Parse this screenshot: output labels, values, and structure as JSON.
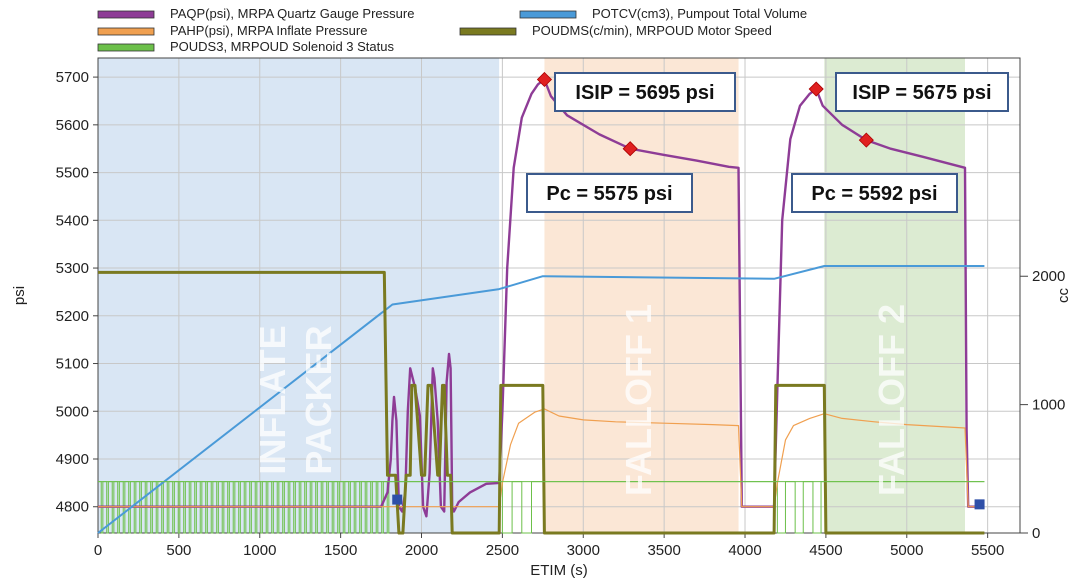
{
  "chart_data": {
    "type": "line",
    "title": "",
    "xlabel": "ETIM (s)",
    "ylabel": "psi",
    "y2label": "cc",
    "xlim": [
      0,
      5700
    ],
    "ylim": [
      4745,
      5740
    ],
    "y2lim": [
      0,
      3700
    ],
    "x_ticks": [
      0,
      500,
      1000,
      1500,
      2000,
      2500,
      3000,
      3500,
      4000,
      4500,
      5000,
      5500
    ],
    "y_ticks": [
      4800,
      4900,
      5000,
      5100,
      5200,
      5300,
      5400,
      5500,
      5600,
      5700
    ],
    "y2_ticks": [
      0,
      1000,
      2000
    ],
    "grid": true,
    "legend_position": "top",
    "legend": [
      {
        "label": "PAQP(psi), MRPA Quartz Gauge Pressure",
        "color": "#8e3c96"
      },
      {
        "label": "POTCV(cm3), Pumpout Total Volume",
        "color": "#4a9ad8"
      },
      {
        "label": "PAHP(psi), MRPA Inflate Pressure",
        "color": "#f0a050"
      },
      {
        "label": "POUDMS(c/min), MRPOUD Motor Speed",
        "color": "#7a7a20"
      },
      {
        "label": "POUDS3, MRPOUD Solenoid 3 Status",
        "color": "#6cc04a"
      }
    ],
    "regions": [
      {
        "label_lines": [
          "INFLATE",
          "PACKER"
        ],
        "x": [
          0,
          2480
        ],
        "color": "#d9e6f4"
      },
      {
        "label_lines": [
          "FALLOFF 1"
        ],
        "x": [
          2760,
          3960
        ],
        "color": "#fbe7d6"
      },
      {
        "label_lines": [
          "FALLOFF 2"
        ],
        "x": [
          4490,
          5360
        ],
        "color": "#dcebd2"
      }
    ],
    "callouts": [
      {
        "text": "ISIP = 5695 psi",
        "point": [
          2760,
          5695
        ]
      },
      {
        "text": "Pc = 5575 psi",
        "point": [
          3290,
          5550
        ]
      },
      {
        "text": "ISIP = 5675 psi",
        "point": [
          4440,
          5675
        ]
      },
      {
        "text": "Pc = 5592 psi",
        "point": [
          4750,
          5568
        ]
      }
    ],
    "markers": [
      [
        1850,
        4815
      ],
      [
        5450,
        4805
      ]
    ],
    "series": [
      {
        "name": "PAQP(psi), MRPA Quartz Gauge Pressure",
        "axis": "left",
        "color": "#8e3c96",
        "x": [
          0,
          1750,
          1790,
          1810,
          1820,
          1830,
          1845,
          1860,
          1880,
          1900,
          1915,
          1930,
          1960,
          1990,
          2010,
          2030,
          2050,
          2070,
          2080,
          2100,
          2120,
          2140,
          2155,
          2170,
          2180,
          2185,
          2190,
          2200,
          2230,
          2300,
          2400,
          2480,
          2500,
          2530,
          2570,
          2620,
          2680,
          2720,
          2760,
          2800,
          2900,
          3100,
          3290,
          3500,
          3700,
          3900,
          3960,
          3980,
          4180,
          4200,
          4230,
          4280,
          4340,
          4400,
          4440,
          4480,
          4600,
          4750,
          4900,
          5100,
          5360,
          5370,
          5380,
          5480
        ],
        "y": [
          4800,
          4800,
          4830,
          4900,
          4980,
          5030,
          4980,
          4800,
          4790,
          4830,
          5000,
          5090,
          5050,
          4990,
          4800,
          4780,
          4870,
          5090,
          5070,
          4980,
          4800,
          4790,
          5060,
          5120,
          5090,
          4950,
          4800,
          4790,
          4810,
          4830,
          4848,
          4850,
          5000,
          5300,
          5510,
          5615,
          5665,
          5685,
          5695,
          5660,
          5620,
          5580,
          5550,
          5537,
          5525,
          5512,
          5510,
          4800,
          4800,
          5050,
          5400,
          5570,
          5640,
          5665,
          5675,
          5640,
          5600,
          5568,
          5550,
          5533,
          5510,
          4960,
          4800,
          4800
        ]
      },
      {
        "name": "PAHP(psi), MRPA Inflate Pressure",
        "axis": "left",
        "color": "#f0a050",
        "x": [
          0,
          2480,
          2500,
          2550,
          2600,
          2700,
          2760,
          2850,
          3000,
          3200,
          3500,
          3800,
          3960,
          3980,
          4180,
          4200,
          4250,
          4300,
          4400,
          4490,
          4600,
          4800,
          5000,
          5200,
          5360,
          5380,
          5480
        ],
        "y": [
          4800,
          4800,
          4850,
          4930,
          4975,
          4998,
          5005,
          4990,
          4982,
          4978,
          4975,
          4972,
          4970,
          4800,
          4800,
          4850,
          4940,
          4970,
          4985,
          4995,
          4985,
          4978,
          4972,
          4968,
          4965,
          4800,
          4800
        ]
      },
      {
        "name": "POTCV(cm3), Pumpout Total Volume",
        "axis": "right",
        "color": "#4a9ad8",
        "x": [
          0,
          1820,
          2480,
          2750,
          2760,
          4180,
          4490,
          5360,
          5480
        ],
        "y": [
          0,
          1780,
          1900,
          2000,
          2000,
          1980,
          2080,
          2080,
          2080
        ]
      },
      {
        "name": "POUDMS(c/min), MRPOUD Motor Speed",
        "axis": "right",
        "color": "#7a7a20",
        "x": [
          0,
          1770,
          1790,
          1840,
          1860,
          1885,
          1905,
          1930,
          1940,
          1960,
          2000,
          2020,
          2040,
          2060,
          2100,
          2110,
          2130,
          2140,
          2160,
          2180,
          2190,
          2480,
          2490,
          2750,
          2760,
          4180,
          4190,
          4490,
          4500,
          5480
        ],
        "y": [
          2030,
          2030,
          450,
          450,
          0,
          0,
          450,
          450,
          1150,
          1150,
          450,
          450,
          1150,
          1150,
          450,
          450,
          1150,
          1150,
          450,
          450,
          0,
          0,
          1150,
          1150,
          0,
          0,
          1150,
          1150,
          0,
          0
        ]
      },
      {
        "name": "POUDS3, MRPOUD Solenoid 3 Status",
        "axis": "right",
        "color": "#6cc04a",
        "x": [
          0,
          1800,
          2480,
          2760,
          4180,
          4490,
          5360,
          5480
        ],
        "y": [
          400,
          400,
          400,
          400,
          400,
          400,
          400,
          400
        ]
      }
    ]
  }
}
